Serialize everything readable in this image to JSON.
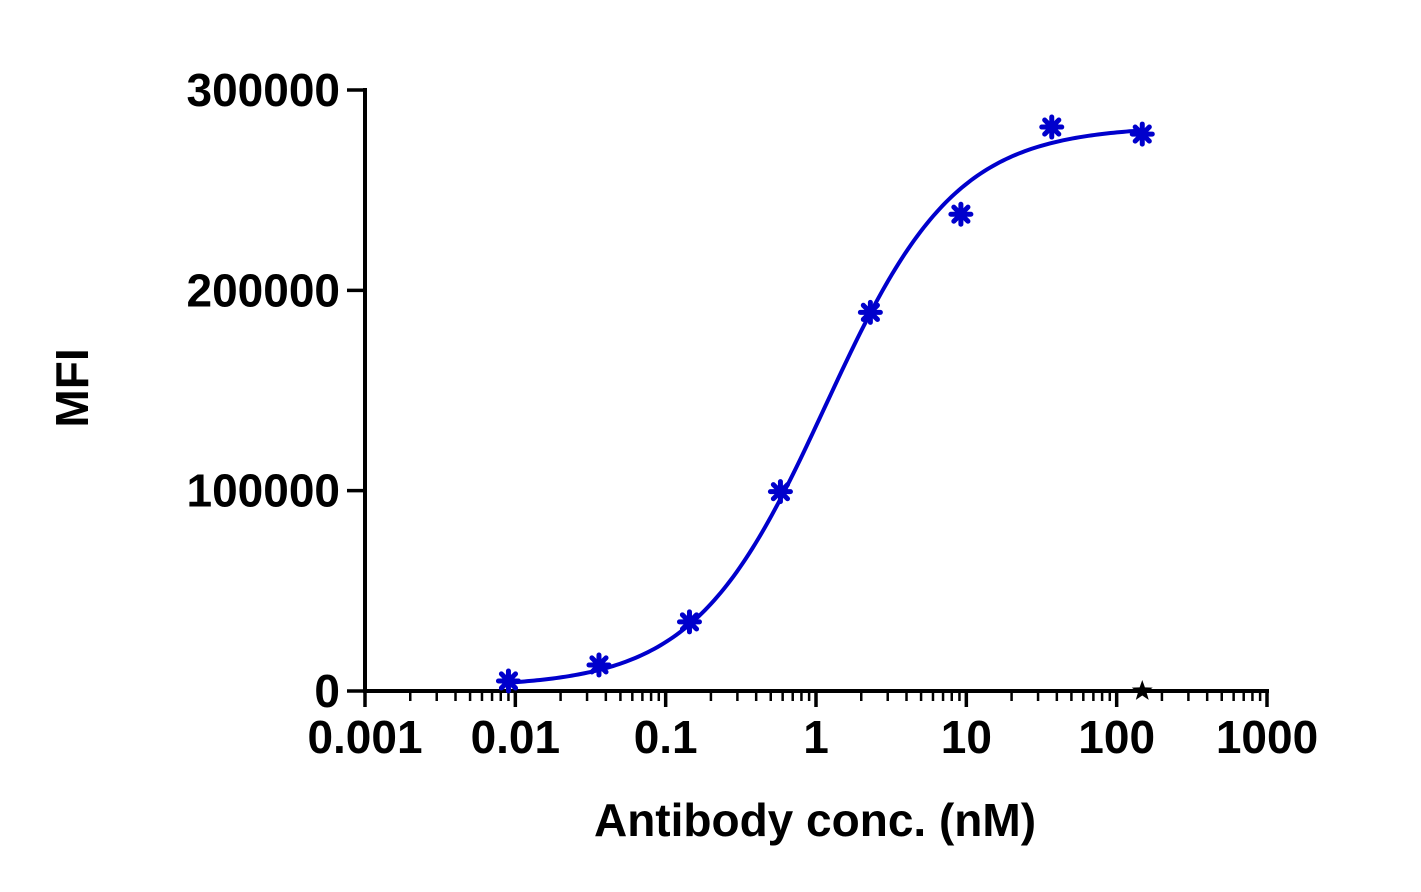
{
  "chart_data": {
    "type": "scatter",
    "xscale": "log",
    "xlabel": "Antibody conc. (nM)",
    "ylabel": "MFI",
    "xlim": [
      0.001,
      1000
    ],
    "ylim": [
      0,
      300000
    ],
    "x_ticks": [
      "0.001",
      "0.01",
      "0.1",
      "1",
      "10",
      "100",
      "1000"
    ],
    "y_ticks": [
      "0",
      "100000",
      "200000",
      "300000"
    ],
    "grid": false,
    "legend": "none",
    "series": [
      {
        "color": "#0000CC",
        "marker": "asterisk",
        "x": [
          0.009,
          0.036,
          0.144,
          0.58,
          2.3,
          9.2,
          37,
          148
        ],
        "y": [
          5000,
          13000,
          34500,
          99500,
          189000,
          238000,
          281500,
          278000
        ],
        "fit_curve": "4PL",
        "fit": {
          "bottom": 2000,
          "top": 282000,
          "ec50": 1.15,
          "hill": 1.0
        }
      },
      {
        "color": "#000000",
        "marker": "star",
        "x": [
          148
        ],
        "y": [
          0
        ]
      }
    ]
  }
}
